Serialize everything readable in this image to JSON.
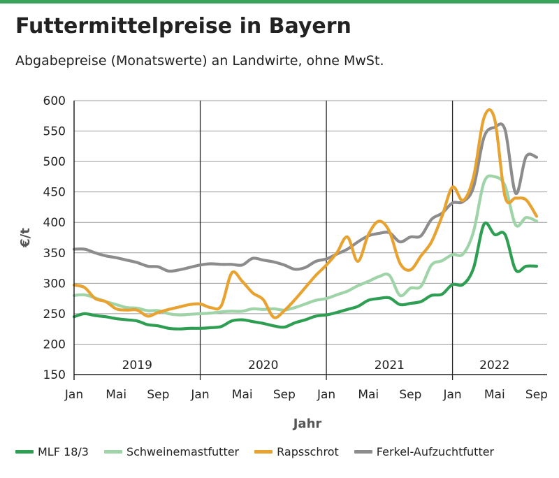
{
  "title": "Futtermittelpreise in Bayern",
  "subtitle": "Abgabepreise (Monatswerte) an Landwirte, ohne MwSt.",
  "colors": {
    "accent": "#3aa35b",
    "mlf": "#2e9e52",
    "schwein": "#9fd3a8",
    "raps": "#e8a230",
    "ferkel": "#8c8c8c"
  },
  "chart_data": {
    "type": "line",
    "ylabel": "€/t",
    "xlabel": "Jahr",
    "ylim": [
      150,
      600
    ],
    "yticks": [
      150,
      200,
      250,
      300,
      350,
      400,
      450,
      500,
      550,
      600
    ],
    "x_range": [
      "2019-01",
      "2022-10"
    ],
    "x_tick_labels": [
      "Jan",
      "Mai",
      "Sep",
      "Jan",
      "Mai",
      "Sep",
      "Jan",
      "Mai",
      "Sep",
      "Jan",
      "Mai",
      "Sep"
    ],
    "x_tick_months": [
      "2019-01",
      "2019-05",
      "2019-09",
      "2020-01",
      "2020-05",
      "2020-09",
      "2021-01",
      "2021-05",
      "2021-09",
      "2022-01",
      "2022-05",
      "2022-09"
    ],
    "year_labels": [
      {
        "label": "2019",
        "center": "2019-07"
      },
      {
        "label": "2020",
        "center": "2020-07"
      },
      {
        "label": "2021",
        "center": "2021-07"
      },
      {
        "label": "2022",
        "center": "2022-05"
      }
    ],
    "year_dividers": [
      "2020-01",
      "2021-01",
      "2022-01"
    ],
    "grid": true,
    "legend_position": "bottom",
    "series": [
      {
        "name": "MLF 18/3",
        "color": "#2e9e52",
        "points": [
          [
            "2019-01",
            245
          ],
          [
            "2019-02",
            250
          ],
          [
            "2019-03",
            247
          ],
          [
            "2019-04",
            245
          ],
          [
            "2019-05",
            242
          ],
          [
            "2019-06",
            240
          ],
          [
            "2019-07",
            238
          ],
          [
            "2019-08",
            232
          ],
          [
            "2019-09",
            230
          ],
          [
            "2019-10",
            226
          ],
          [
            "2019-11",
            225
          ],
          [
            "2019-12",
            226
          ],
          [
            "2020-01",
            226
          ],
          [
            "2020-02",
            227
          ],
          [
            "2020-03",
            229
          ],
          [
            "2020-04",
            238
          ],
          [
            "2020-05",
            240
          ],
          [
            "2020-06",
            237
          ],
          [
            "2020-07",
            234
          ],
          [
            "2020-08",
            230
          ],
          [
            "2020-09",
            228
          ],
          [
            "2020-10",
            235
          ],
          [
            "2020-11",
            240
          ],
          [
            "2020-12",
            246
          ],
          [
            "2021-01",
            248
          ],
          [
            "2021-02",
            252
          ],
          [
            "2021-03",
            257
          ],
          [
            "2021-04",
            262
          ],
          [
            "2021-05",
            272
          ],
          [
            "2021-06",
            275
          ],
          [
            "2021-07",
            276
          ],
          [
            "2021-08",
            265
          ],
          [
            "2021-09",
            267
          ],
          [
            "2021-10",
            270
          ],
          [
            "2021-11",
            280
          ],
          [
            "2021-12",
            282
          ],
          [
            "2022-01",
            298
          ],
          [
            "2022-02",
            298
          ],
          [
            "2022-03",
            325
          ],
          [
            "2022-04",
            397
          ],
          [
            "2022-05",
            380
          ],
          [
            "2022-06",
            380
          ],
          [
            "2022-07",
            322
          ],
          [
            "2022-08",
            328
          ],
          [
            "2022-09",
            328
          ]
        ]
      },
      {
        "name": "Schweinemastfutter",
        "color": "#9fd3a8",
        "points": [
          [
            "2019-01",
            280
          ],
          [
            "2019-02",
            281
          ],
          [
            "2019-03",
            276
          ],
          [
            "2019-04",
            270
          ],
          [
            "2019-05",
            265
          ],
          [
            "2019-06",
            260
          ],
          [
            "2019-07",
            259
          ],
          [
            "2019-08",
            255
          ],
          [
            "2019-09",
            255
          ],
          [
            "2019-10",
            250
          ],
          [
            "2019-11",
            248
          ],
          [
            "2019-12",
            249
          ],
          [
            "2020-01",
            250
          ],
          [
            "2020-02",
            251
          ],
          [
            "2020-03",
            253
          ],
          [
            "2020-04",
            254
          ],
          [
            "2020-05",
            254
          ],
          [
            "2020-06",
            258
          ],
          [
            "2020-07",
            257
          ],
          [
            "2020-08",
            258
          ],
          [
            "2020-09",
            256
          ],
          [
            "2020-10",
            260
          ],
          [
            "2020-11",
            266
          ],
          [
            "2020-12",
            272
          ],
          [
            "2021-01",
            275
          ],
          [
            "2021-02",
            281
          ],
          [
            "2021-03",
            287
          ],
          [
            "2021-04",
            296
          ],
          [
            "2021-05",
            303
          ],
          [
            "2021-06",
            311
          ],
          [
            "2021-07",
            313
          ],
          [
            "2021-08",
            280
          ],
          [
            "2021-09",
            292
          ],
          [
            "2021-10",
            295
          ],
          [
            "2021-11",
            330
          ],
          [
            "2021-12",
            337
          ],
          [
            "2022-01",
            347
          ],
          [
            "2022-02",
            348
          ],
          [
            "2022-03",
            385
          ],
          [
            "2022-04",
            466
          ],
          [
            "2022-05",
            475
          ],
          [
            "2022-06",
            460
          ],
          [
            "2022-07",
            396
          ],
          [
            "2022-08",
            408
          ],
          [
            "2022-09",
            402
          ]
        ]
      },
      {
        "name": "Rapsschrot",
        "color": "#e8a230",
        "points": [
          [
            "2019-01",
            297
          ],
          [
            "2019-02",
            293
          ],
          [
            "2019-03",
            275
          ],
          [
            "2019-04",
            270
          ],
          [
            "2019-05",
            258
          ],
          [
            "2019-06",
            256
          ],
          [
            "2019-07",
            256
          ],
          [
            "2019-08",
            246
          ],
          [
            "2019-09",
            252
          ],
          [
            "2019-10",
            257
          ],
          [
            "2019-11",
            261
          ],
          [
            "2019-12",
            265
          ],
          [
            "2020-01",
            266
          ],
          [
            "2020-02",
            260
          ],
          [
            "2020-03",
            263
          ],
          [
            "2020-04",
            317
          ],
          [
            "2020-05",
            303
          ],
          [
            "2020-06",
            284
          ],
          [
            "2020-07",
            273
          ],
          [
            "2020-08",
            244
          ],
          [
            "2020-09",
            255
          ],
          [
            "2020-10",
            273
          ],
          [
            "2020-11",
            293
          ],
          [
            "2020-12",
            313
          ],
          [
            "2021-01",
            330
          ],
          [
            "2021-02",
            350
          ],
          [
            "2021-03",
            376
          ],
          [
            "2021-04",
            336
          ],
          [
            "2021-05",
            380
          ],
          [
            "2021-06",
            402
          ],
          [
            "2021-07",
            385
          ],
          [
            "2021-08",
            333
          ],
          [
            "2021-09",
            322
          ],
          [
            "2021-10",
            345
          ],
          [
            "2021-11",
            368
          ],
          [
            "2021-12",
            410
          ],
          [
            "2022-01",
            458
          ],
          [
            "2022-02",
            436
          ],
          [
            "2022-03",
            475
          ],
          [
            "2022-04",
            572
          ],
          [
            "2022-05",
            570
          ],
          [
            "2022-06",
            442
          ],
          [
            "2022-07",
            440
          ],
          [
            "2022-08",
            437
          ],
          [
            "2022-09",
            410
          ]
        ]
      },
      {
        "name": "Ferkel-Aufzuchtfutter",
        "color": "#8c8c8c",
        "points": [
          [
            "2019-01",
            356
          ],
          [
            "2019-02",
            356
          ],
          [
            "2019-03",
            350
          ],
          [
            "2019-04",
            345
          ],
          [
            "2019-05",
            342
          ],
          [
            "2019-06",
            338
          ],
          [
            "2019-07",
            334
          ],
          [
            "2019-08",
            328
          ],
          [
            "2019-09",
            327
          ],
          [
            "2019-10",
            320
          ],
          [
            "2019-11",
            322
          ],
          [
            "2019-12",
            326
          ],
          [
            "2020-01",
            330
          ],
          [
            "2020-02",
            332
          ],
          [
            "2020-03",
            331
          ],
          [
            "2020-04",
            331
          ],
          [
            "2020-05",
            330
          ],
          [
            "2020-06",
            341
          ],
          [
            "2020-07",
            338
          ],
          [
            "2020-08",
            335
          ],
          [
            "2020-09",
            330
          ],
          [
            "2020-10",
            323
          ],
          [
            "2020-11",
            326
          ],
          [
            "2020-12",
            336
          ],
          [
            "2021-01",
            340
          ],
          [
            "2021-02",
            348
          ],
          [
            "2021-03",
            356
          ],
          [
            "2021-04",
            368
          ],
          [
            "2021-05",
            378
          ],
          [
            "2021-06",
            382
          ],
          [
            "2021-07",
            383
          ],
          [
            "2021-08",
            368
          ],
          [
            "2021-09",
            376
          ],
          [
            "2021-10",
            378
          ],
          [
            "2021-11",
            405
          ],
          [
            "2021-12",
            415
          ],
          [
            "2022-01",
            432
          ],
          [
            "2022-02",
            434
          ],
          [
            "2022-03",
            458
          ],
          [
            "2022-04",
            540
          ],
          [
            "2022-05",
            556
          ],
          [
            "2022-06",
            552
          ],
          [
            "2022-07",
            448
          ],
          [
            "2022-08",
            508
          ],
          [
            "2022-09",
            507
          ]
        ]
      }
    ]
  }
}
